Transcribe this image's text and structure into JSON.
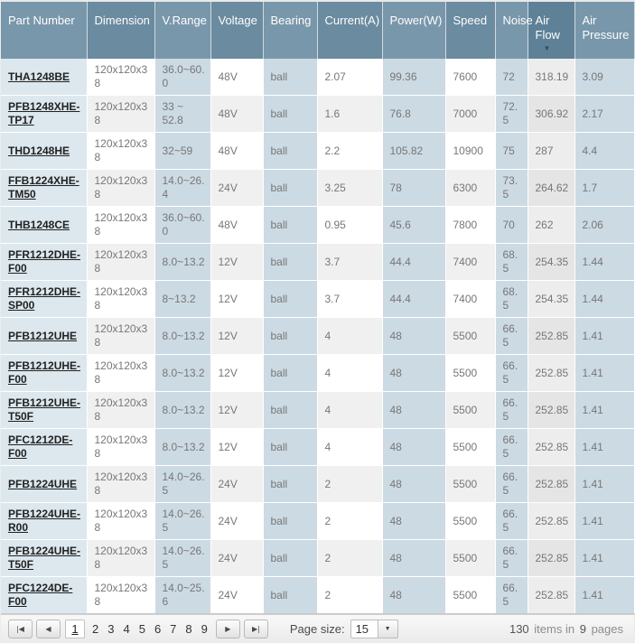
{
  "table": {
    "columns": [
      {
        "key": "part",
        "label": "Part Number"
      },
      {
        "key": "dimension",
        "label": "Dimension"
      },
      {
        "key": "vrange",
        "label": "V.Range"
      },
      {
        "key": "voltage",
        "label": "Voltage"
      },
      {
        "key": "bearing",
        "label": "Bearing"
      },
      {
        "key": "current",
        "label": "Current(A)"
      },
      {
        "key": "power",
        "label": "Power(W)"
      },
      {
        "key": "speed",
        "label": "Speed"
      },
      {
        "key": "noise",
        "label": "Noise"
      },
      {
        "key": "airflow",
        "label": "Air Flow",
        "sorted": "desc"
      },
      {
        "key": "airpressure",
        "label": "Air Pressure"
      }
    ],
    "sort_icon": "▼",
    "rows": [
      [
        "THA1248BE",
        "120x120x38",
        "36.0~60.0",
        "48V",
        "ball",
        "2.07",
        "99.36",
        "7600",
        "72",
        "318.19",
        "3.09"
      ],
      [
        "PFB1248XHE-TP17",
        "120x120x38",
        "33 ~ 52.8",
        "48V",
        "ball",
        "1.6",
        "76.8",
        "7000",
        "72.5",
        "306.92",
        "2.17"
      ],
      [
        "THD1248HE",
        "120x120x38",
        "32~59",
        "48V",
        "ball",
        "2.2",
        "105.82",
        "10900",
        "75",
        "287",
        "4.4"
      ],
      [
        "FFB1224XHE-TM50",
        "120x120x38",
        "14.0~26.4",
        "24V",
        "ball",
        "3.25",
        "78",
        "6300",
        "73.5",
        "264.62",
        "1.7"
      ],
      [
        "THB1248CE",
        "120x120x38",
        "36.0~60.0",
        "48V",
        "ball",
        "0.95",
        "45.6",
        "7800",
        "70",
        "262",
        "2.06"
      ],
      [
        "PFR1212DHE-F00",
        "120x120x38",
        "8.0~13.2",
        "12V",
        "ball",
        "3.7",
        "44.4",
        "7400",
        "68.5",
        "254.35",
        "1.44"
      ],
      [
        "PFR1212DHE-SP00",
        "120x120x38",
        "8~13.2",
        "12V",
        "ball",
        "3.7",
        "44.4",
        "7400",
        "68.5",
        "254.35",
        "1.44"
      ],
      [
        "PFB1212UHE",
        "120x120x38",
        "8.0~13.2",
        "12V",
        "ball",
        "4",
        "48",
        "5500",
        "66.5",
        "252.85",
        "1.41"
      ],
      [
        "PFB1212UHE-F00",
        "120x120x38",
        "8.0~13.2",
        "12V",
        "ball",
        "4",
        "48",
        "5500",
        "66.5",
        "252.85",
        "1.41"
      ],
      [
        "PFB1212UHE-T50F",
        "120x120x38",
        "8.0~13.2",
        "12V",
        "ball",
        "4",
        "48",
        "5500",
        "66.5",
        "252.85",
        "1.41"
      ],
      [
        "PFC1212DE-F00",
        "120x120x38",
        "8.0~13.2",
        "12V",
        "ball",
        "4",
        "48",
        "5500",
        "66.5",
        "252.85",
        "1.41"
      ],
      [
        "PFB1224UHE",
        "120x120x38",
        "14.0~26.5",
        "24V",
        "ball",
        "2",
        "48",
        "5500",
        "66.5",
        "252.85",
        "1.41"
      ],
      [
        "PFB1224UHE-R00",
        "120x120x38",
        "14.0~26.5",
        "24V",
        "ball",
        "2",
        "48",
        "5500",
        "66.5",
        "252.85",
        "1.41"
      ],
      [
        "PFB1224UHE-T50F",
        "120x120x38",
        "14.0~26.5",
        "24V",
        "ball",
        "2",
        "48",
        "5500",
        "66.5",
        "252.85",
        "1.41"
      ],
      [
        "PFC1224DE-F00",
        "120x120x38",
        "14.0~25.6",
        "24V",
        "ball",
        "2",
        "48",
        "5500",
        "66.5",
        "252.85",
        "1.41"
      ]
    ]
  },
  "pager": {
    "nav": {
      "first": "|◀",
      "prev": "◀",
      "next": "▶",
      "last": "▶|"
    },
    "pages": [
      "1",
      "2",
      "3",
      "4",
      "5",
      "6",
      "7",
      "8",
      "9"
    ],
    "current_page": "1",
    "page_size_label": "Page size:",
    "page_size_value": "15",
    "dropdown_icon": "▼",
    "summary": {
      "items_count": "130",
      "items_text": "items in",
      "pages_count": "9",
      "pages_text": "pages"
    }
  },
  "colors": {
    "header_light": "#7997ab",
    "header_dark": "#6a8ba0",
    "header_sorted": "#5e8197",
    "part_column": "#dce8ee",
    "tint_column": "#ccdae3",
    "sorted_column": "#eeedee"
  }
}
